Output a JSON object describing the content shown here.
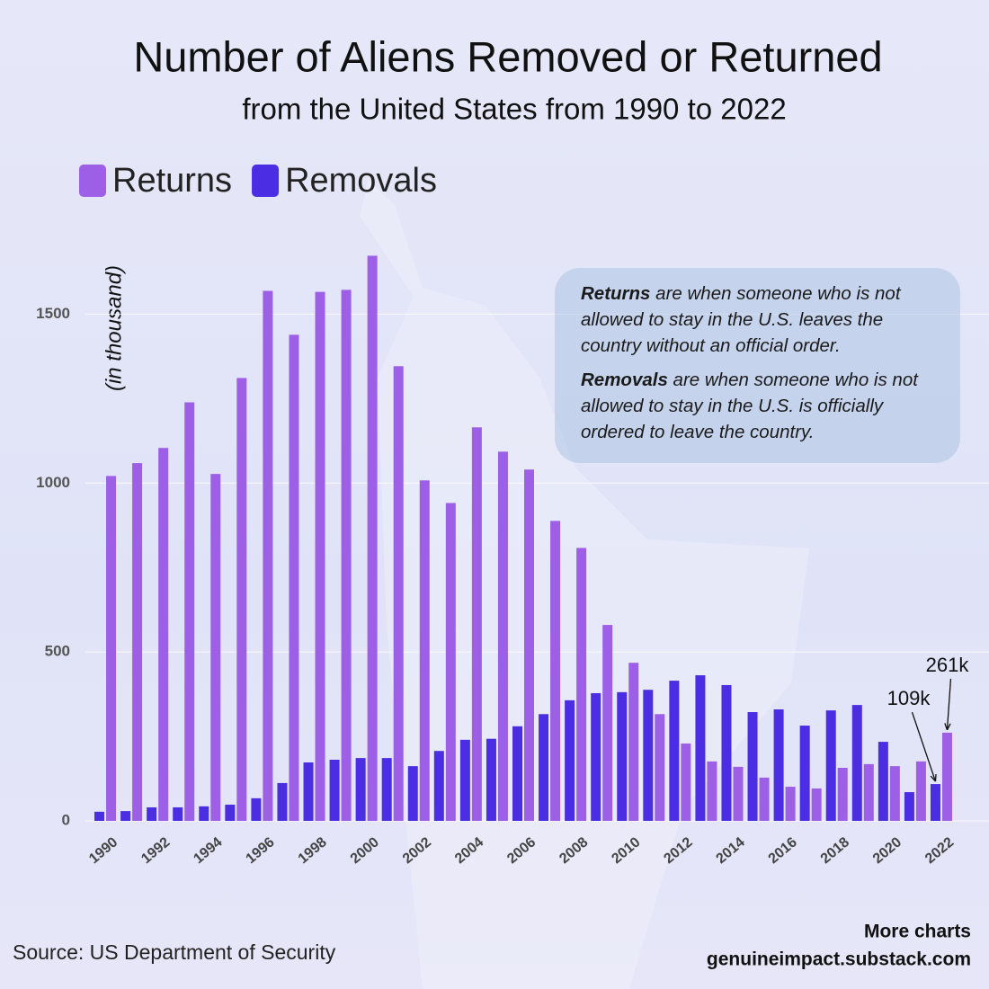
{
  "chart_data": {
    "type": "bar",
    "title": "Number of Aliens Removed or Returned",
    "subtitle": "from the United States from 1990 to 2022",
    "y_label": "(in thousand)",
    "categories": [
      "1990",
      null,
      "1992",
      null,
      "1994",
      null,
      "1996",
      null,
      "1998",
      null,
      "2000",
      null,
      "2002",
      null,
      "2004",
      null,
      "2006",
      null,
      "2008",
      null,
      "2010",
      null,
      "2012",
      null,
      "2014",
      null,
      "2016",
      null,
      "2018",
      null,
      "2020",
      null,
      "2022"
    ],
    "series": [
      {
        "name": "Returns",
        "color": "#9d5fe6",
        "values": [
          1021,
          1059,
          1104,
          1239,
          1027,
          1311,
          1569,
          1439,
          1566,
          1572,
          1673,
          1346,
          1008,
          941,
          1165,
          1093,
          1040,
          888,
          808,
          580,
          468,
          316,
          229,
          176,
          160,
          128,
          101,
          96,
          157,
          168,
          162,
          176,
          261
        ],
        "value_labels": [
          null,
          null,
          null,
          null,
          null,
          null,
          null,
          null,
          null,
          null,
          null,
          null,
          null,
          null,
          null,
          null,
          null,
          null,
          null,
          null,
          null,
          null,
          null,
          null,
          null,
          null,
          null,
          null,
          null,
          null,
          null,
          null,
          "261k"
        ]
      },
      {
        "name": "Removals",
        "color": "#4b2de3",
        "values": [
          27,
          29,
          40,
          40,
          43,
          48,
          67,
          112,
          173,
          181,
          186,
          186,
          162,
          207,
          240,
          243,
          280,
          316,
          357,
          378,
          381,
          388,
          415,
          431,
          402,
          322,
          330,
          282,
          327,
          343,
          234,
          85,
          109
        ],
        "value_labels": [
          null,
          null,
          null,
          null,
          null,
          null,
          null,
          null,
          null,
          null,
          null,
          null,
          null,
          null,
          null,
          null,
          null,
          null,
          null,
          null,
          null,
          null,
          null,
          null,
          null,
          null,
          null,
          null,
          null,
          null,
          null,
          null,
          "109k"
        ]
      }
    ],
    "ylim": [
      0,
      1750
    ],
    "yticks": [
      0,
      500,
      1000,
      1500
    ],
    "grid": true,
    "info": [
      {
        "term": "Returns",
        "text": " are when someone who is not allowed to stay in the U.S. leaves the country without an official order."
      },
      {
        "term": "Removals",
        "text": " are when someone who is not allowed to stay in the U.S. is officially ordered to leave the country."
      }
    ],
    "source": "Source: US Department of Security",
    "footer": [
      "More charts",
      "genuineimpact.substack.com"
    ]
  }
}
